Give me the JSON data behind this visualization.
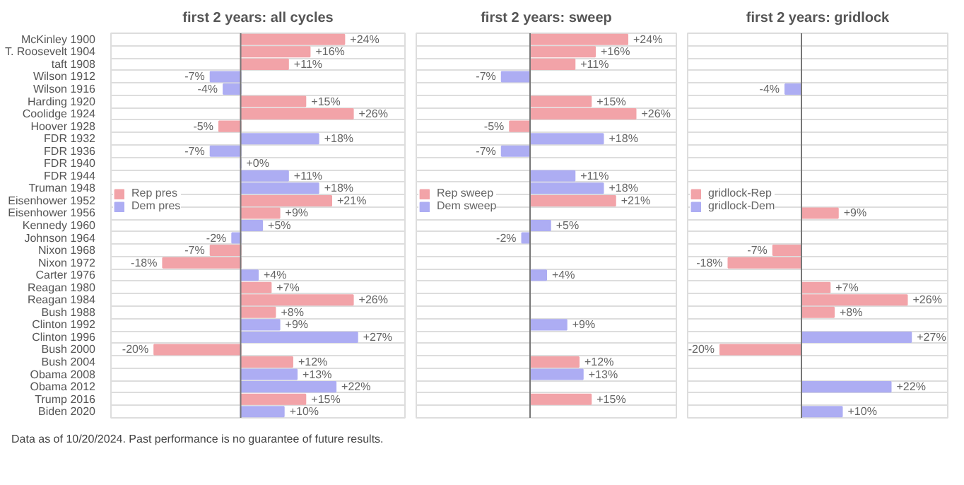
{
  "chart_data": [
    {
      "type": "bar",
      "orientation": "horizontal",
      "title": "first 2 years: all cycles",
      "categories": [
        "McKinley 1900",
        "T. Roosevelt 1904",
        "taft 1908",
        "Wilson 1912",
        "Wilson 1916",
        "Harding 1920",
        "Coolidge 1924",
        "Hoover 1928",
        "FDR 1932",
        "FDR 1936",
        "FDR 1940",
        "FDR 1944",
        "Truman 1948",
        "Eisenhower 1952",
        "Eisenhower 1956",
        "Kennedy 1960",
        "Johnson 1964",
        "Nixon 1968",
        "Nixon 1972",
        "Carter 1976",
        "Reagan 1980",
        "Reagan 1984",
        "Bush 1988",
        "Clinton 1992",
        "Clinton 1996",
        "Bush 2000",
        "Bush 2004",
        "Obama 2008",
        "Obama 2012",
        "Trump 2016",
        "Biden 2020"
      ],
      "series": [
        {
          "name": "Rep pres",
          "color": "#f2a3a8",
          "values": [
            24,
            16,
            11,
            null,
            null,
            15,
            26,
            -5,
            null,
            null,
            null,
            null,
            null,
            21,
            9,
            null,
            null,
            -7,
            -18,
            null,
            7,
            26,
            8,
            null,
            null,
            -20,
            12,
            null,
            null,
            15,
            null
          ],
          "value_labels": [
            "+24%",
            "+16%",
            "+11%",
            null,
            null,
            "+15%",
            "+26%",
            "-5%",
            null,
            null,
            null,
            null,
            null,
            "+21%",
            "+9%",
            null,
            null,
            "-7%",
            "-18%",
            null,
            "+7%",
            "+26%",
            "+8%",
            null,
            null,
            "-20%",
            "+12%",
            null,
            null,
            "+15%",
            null
          ]
        },
        {
          "name": "Dem pres",
          "color": "#adadf3",
          "values": [
            null,
            null,
            null,
            -7,
            -4,
            null,
            null,
            null,
            18,
            -7,
            0,
            11,
            18,
            null,
            null,
            5,
            -2,
            null,
            null,
            4,
            null,
            null,
            null,
            9,
            27,
            null,
            null,
            13,
            22,
            null,
            10
          ],
          "value_labels": [
            null,
            null,
            null,
            "-7%",
            "-4%",
            null,
            null,
            null,
            "+18%",
            "-7%",
            "+0%",
            "+11%",
            "+18%",
            null,
            null,
            "+5%",
            "-2%",
            null,
            null,
            "+4%",
            null,
            null,
            null,
            "+9%",
            "+27%",
            null,
            null,
            "+13%",
            "+22%",
            null,
            "+10%"
          ]
        }
      ],
      "xlim": [
        -30,
        38
      ],
      "tick_labels": "y",
      "grid": "y",
      "legend": "left",
      "annotations": [
        "Data as of 10/20/2024. Past performance is no guarantee of future results."
      ]
    },
    {
      "type": "bar",
      "orientation": "horizontal",
      "title": "first 2 years: sweep",
      "categories": [
        null,
        null,
        null,
        null,
        null,
        null,
        null,
        null,
        null,
        null,
        null,
        null,
        null,
        null,
        null,
        null,
        null,
        null,
        null,
        null,
        null,
        null,
        null,
        null,
        null,
        null,
        null,
        null,
        null,
        null,
        null
      ],
      "series": [
        {
          "name": "Rep sweep",
          "color": "#f2a3a8",
          "values": [
            24,
            16,
            11,
            null,
            null,
            15,
            26,
            -5,
            null,
            null,
            null,
            null,
            null,
            21,
            null,
            null,
            null,
            null,
            null,
            null,
            null,
            null,
            null,
            null,
            null,
            null,
            12,
            null,
            null,
            15,
            null
          ],
          "value_labels": [
            "+24%",
            "+16%",
            "+11%",
            null,
            null,
            "+15%",
            "+26%",
            "-5%",
            null,
            null,
            null,
            null,
            null,
            "+21%",
            null,
            null,
            null,
            null,
            null,
            null,
            null,
            null,
            null,
            null,
            null,
            null,
            "+12%",
            null,
            null,
            "+15%",
            null
          ]
        },
        {
          "name": "Dem sweep",
          "color": "#adadf3",
          "values": [
            null,
            null,
            null,
            -7,
            null,
            null,
            null,
            null,
            18,
            -7,
            null,
            11,
            18,
            null,
            null,
            5,
            -2,
            null,
            null,
            4,
            null,
            null,
            null,
            9,
            null,
            null,
            null,
            13,
            null,
            null,
            null
          ],
          "value_labels": [
            null,
            null,
            null,
            "-7%",
            null,
            null,
            null,
            null,
            "+18%",
            "-7%",
            null,
            "+11%",
            "+18%",
            null,
            null,
            "+5%",
            "-2%",
            null,
            null,
            "+4%",
            null,
            null,
            null,
            "+9%",
            null,
            null,
            null,
            "+13%",
            null,
            null,
            null
          ]
        }
      ],
      "xlim": [
        -28,
        36
      ],
      "tick_labels": false,
      "grid": "y",
      "legend": "left"
    },
    {
      "type": "bar",
      "orientation": "horizontal",
      "title": "first 2 years: gridlock",
      "categories": [
        null,
        null,
        null,
        null,
        null,
        null,
        null,
        null,
        null,
        null,
        null,
        null,
        null,
        null,
        null,
        null,
        null,
        null,
        null,
        null,
        null,
        null,
        null,
        null,
        null,
        null,
        null,
        null,
        null,
        null,
        null
      ],
      "series": [
        {
          "name": "gridlock-Rep",
          "color": "#f2a3a8",
          "values": [
            null,
            null,
            null,
            null,
            null,
            null,
            null,
            null,
            null,
            null,
            null,
            null,
            null,
            null,
            9,
            null,
            null,
            -7,
            -18,
            null,
            7,
            26,
            8,
            null,
            null,
            -20,
            null,
            null,
            null,
            null,
            null
          ],
          "value_labels": [
            null,
            null,
            null,
            null,
            null,
            null,
            null,
            null,
            null,
            null,
            null,
            null,
            null,
            null,
            "+9%",
            null,
            null,
            "-7%",
            "-18%",
            null,
            "+7%",
            "+26%",
            "+8%",
            null,
            null,
            "-20%",
            null,
            null,
            null,
            null,
            null
          ]
        },
        {
          "name": "gridlock-Dem",
          "color": "#adadf3",
          "values": [
            null,
            null,
            null,
            null,
            -4,
            null,
            null,
            null,
            null,
            null,
            null,
            null,
            null,
            null,
            null,
            null,
            null,
            null,
            null,
            null,
            null,
            null,
            null,
            null,
            27,
            null,
            null,
            null,
            22,
            null,
            10
          ],
          "value_labels": [
            null,
            null,
            null,
            null,
            "-4%",
            null,
            null,
            null,
            null,
            null,
            null,
            null,
            null,
            null,
            null,
            null,
            null,
            null,
            null,
            null,
            null,
            null,
            null,
            null,
            "+27%",
            null,
            null,
            null,
            "+22%",
            null,
            "+10%"
          ]
        }
      ],
      "xlim": [
        -28,
        36
      ],
      "tick_labels": false,
      "grid": "y",
      "legend": "left"
    }
  ]
}
